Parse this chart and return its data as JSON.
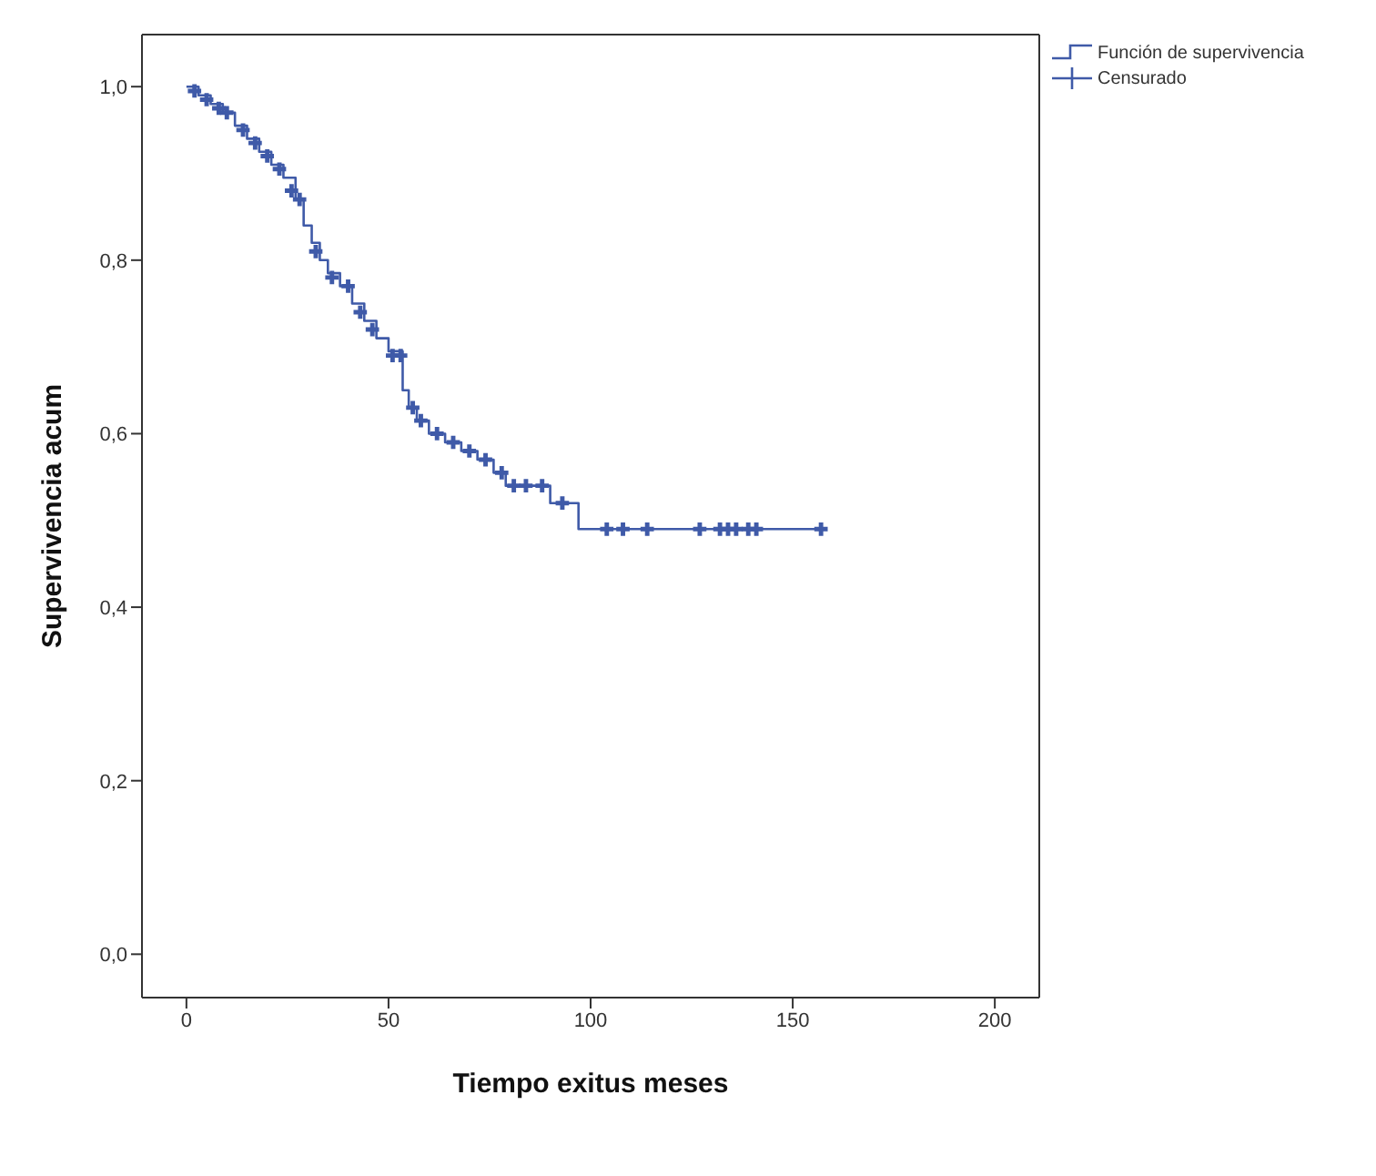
{
  "chart_data": {
    "type": "step",
    "xlabel": "Tiempo exitus meses",
    "ylabel": "Supervivencia acum",
    "xlim": [
      -11,
      211
    ],
    "ylim": [
      -0.05,
      1.06
    ],
    "xticks": [
      0,
      50,
      100,
      150,
      200
    ],
    "yticks": [
      {
        "value": 0,
        "label": "0,0"
      },
      {
        "value": 0.2,
        "label": "0,2"
      },
      {
        "value": 0.4,
        "label": "0,4"
      },
      {
        "value": 0.6,
        "label": "0,6"
      },
      {
        "value": 0.8,
        "label": "0,8"
      },
      {
        "value": 1,
        "label": "1,0"
      }
    ],
    "grid": false,
    "legend": "top right",
    "series": [
      {
        "name": "Función de supervivencia",
        "color": "#3f5aa8",
        "marker": "none",
        "x": [
          0,
          3,
          6,
          9,
          12,
          15,
          18,
          21,
          24,
          27,
          29,
          31,
          33,
          35,
          38,
          41,
          44,
          47,
          50,
          53.5,
          55,
          57,
          60,
          64,
          68,
          72,
          76,
          79,
          90,
          97,
          157
        ],
        "values": [
          1,
          0.99,
          0.98,
          0.97,
          0.955,
          0.94,
          0.925,
          0.91,
          0.895,
          0.87,
          0.84,
          0.82,
          0.8,
          0.785,
          0.77,
          0.75,
          0.73,
          0.71,
          0.695,
          0.65,
          0.63,
          0.615,
          0.6,
          0.59,
          0.58,
          0.57,
          0.555,
          0.54,
          0.52,
          0.49,
          0.49
        ]
      },
      {
        "name": "Censurado",
        "type": "scatter",
        "color": "#3f5aa8",
        "marker": "cross",
        "x": [
          2,
          5,
          8,
          10,
          14,
          17,
          20,
          23,
          26,
          28,
          32,
          36,
          40,
          43,
          46,
          51,
          53,
          56,
          58,
          62,
          66,
          70,
          74,
          78,
          81,
          84,
          88,
          93,
          104,
          108,
          114,
          127,
          132,
          134,
          136,
          139,
          141,
          157
        ],
        "values": [
          0.995,
          0.985,
          0.975,
          0.97,
          0.95,
          0.935,
          0.92,
          0.905,
          0.88,
          0.87,
          0.81,
          0.78,
          0.77,
          0.74,
          0.72,
          0.69,
          0.69,
          0.63,
          0.615,
          0.6,
          0.59,
          0.58,
          0.57,
          0.555,
          0.54,
          0.54,
          0.54,
          0.52,
          0.49,
          0.49,
          0.49,
          0.49,
          0.49,
          0.49,
          0.49,
          0.49,
          0.49,
          0.49
        ]
      }
    ]
  }
}
